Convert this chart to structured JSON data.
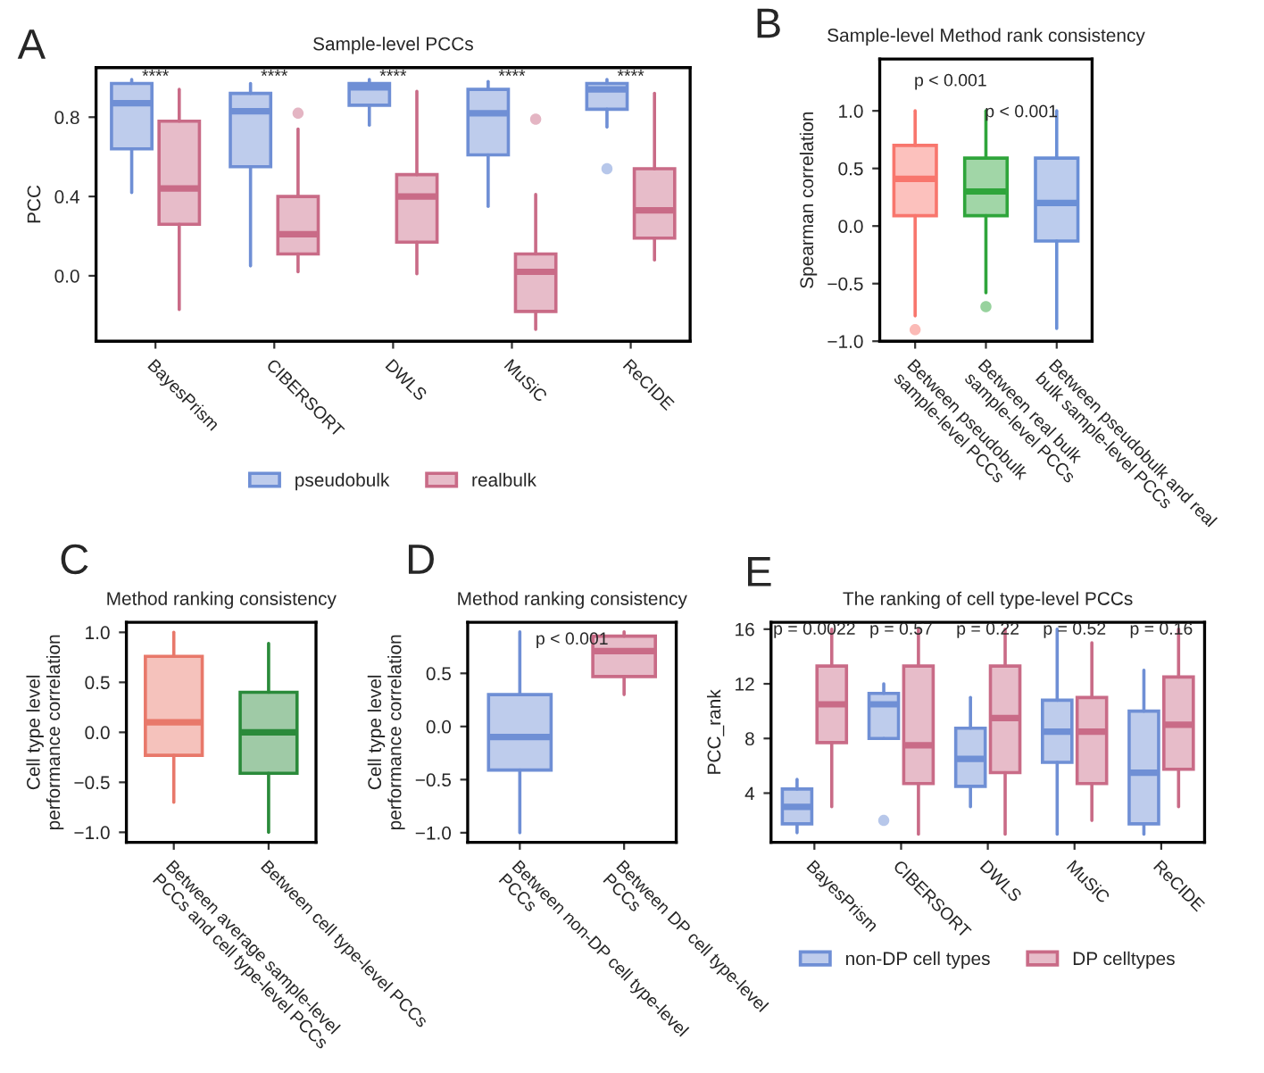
{
  "chart_data": [
    {
      "type": "box",
      "title": "Sample-level PCCs",
      "ylabel": "PCC",
      "categories": [
        "BayesPrism",
        "CIBERSORT",
        "DWLS",
        "MuSiC",
        "ReCIDE"
      ],
      "ylim": [
        -0.33,
        1.05
      ],
      "yticks": [
        {
          "value": 0,
          "label": "0.0"
        },
        {
          "value": 0.4,
          "label": "0.4"
        },
        {
          "value": 0.8,
          "label": "0.8"
        }
      ],
      "legend": "bottom",
      "series": [
        {
          "name": "pseudobulk",
          "color": "#6f8fd5",
          "boxes": [
            {
              "low": 0.42,
              "q1": 0.64,
              "median": 0.87,
              "q3": 0.97,
              "high": 0.99
            },
            {
              "low": 0.05,
              "q1": 0.55,
              "median": 0.83,
              "q3": 0.92,
              "high": 0.97
            },
            {
              "low": 0.76,
              "q1": 0.86,
              "median": 0.95,
              "q3": 0.97,
              "high": 0.99
            },
            {
              "low": 0.35,
              "q1": 0.61,
              "median": 0.82,
              "q3": 0.94,
              "high": 0.98
            },
            {
              "low": 0.75,
              "q1": 0.84,
              "median": 0.94,
              "q3": 0.97,
              "high": 0.99,
              "outliers": [
                0.54
              ]
            }
          ]
        },
        {
          "name": "realbulk",
          "color": "#c96b87",
          "boxes": [
            {
              "low": -0.17,
              "q1": 0.26,
              "median": 0.44,
              "q3": 0.78,
              "high": 0.94
            },
            {
              "low": 0.02,
              "q1": 0.11,
              "median": 0.21,
              "q3": 0.4,
              "high": 0.74,
              "outliers": [
                0.82
              ]
            },
            {
              "low": 0.01,
              "q1": 0.17,
              "median": 0.4,
              "q3": 0.51,
              "high": 0.93
            },
            {
              "low": -0.27,
              "q1": -0.18,
              "median": 0.02,
              "q3": 0.11,
              "high": 0.41,
              "outliers": [
                0.79
              ]
            },
            {
              "low": 0.08,
              "q1": 0.19,
              "median": 0.33,
              "q3": 0.54,
              "high": 0.92
            }
          ]
        }
      ],
      "annotations": [
        "A",
        "****",
        "****",
        "****",
        "****",
        "****"
      ]
    },
    {
      "type": "box",
      "title": "Sample-level Method rank consistency",
      "ylabel": "Spearman correlation",
      "categories": [
        "Between pseudobulk\nsample-level PCCs",
        "Between real bulk\nsample-level PCCs",
        "Between pseudobulk and real\nbulk sample-level PCCs"
      ],
      "ylim": [
        -1.0,
        1.45
      ],
      "yticks": [
        {
          "value": -1,
          "label": "−1.0"
        },
        {
          "value": -0.5,
          "label": "−0.5"
        },
        {
          "value": 0,
          "label": "0.0"
        },
        {
          "value": 0.5,
          "label": "0.5"
        },
        {
          "value": 1,
          "label": "1.0"
        }
      ],
      "colors": [
        "#f8766d",
        "#2fa53b",
        "#6a8fd6"
      ],
      "boxes": [
        {
          "low": -0.78,
          "q1": 0.09,
          "median": 0.41,
          "q3": 0.7,
          "high": 1.0,
          "outliers": [
            -0.9
          ]
        },
        {
          "low": -0.58,
          "q1": 0.09,
          "median": 0.3,
          "q3": 0.59,
          "high": 1.0,
          "outliers": [
            -0.7
          ]
        },
        {
          "low": -0.89,
          "q1": -0.13,
          "median": 0.2,
          "q3": 0.59,
          "high": 1.0
        }
      ],
      "annotations": [
        "B",
        "p < 0.001",
        "p < 0.001"
      ]
    },
    {
      "type": "box",
      "title": "Method ranking consistency",
      "ylabel": "Cell type level\nperformance correlation",
      "categories": [
        "Between average sample-level\nPCCs and cell type-level PCCs",
        "Between cell type-level PCCs"
      ],
      "ylim": [
        -1.1,
        1.1
      ],
      "yticks": [
        {
          "value": -1,
          "label": "−1.0"
        },
        {
          "value": -0.5,
          "label": "−0.5"
        },
        {
          "value": 0,
          "label": "0.0"
        },
        {
          "value": 0.5,
          "label": "0.5"
        },
        {
          "value": 1,
          "label": "1.0"
        }
      ],
      "colors": [
        "#e8786a",
        "#2a8a3a"
      ],
      "boxes": [
        {
          "low": -0.7,
          "q1": -0.23,
          "median": 0.1,
          "q3": 0.76,
          "high": 1.0
        },
        {
          "low": -1.0,
          "q1": -0.41,
          "median": 0.0,
          "q3": 0.4,
          "high": 0.89
        }
      ],
      "annotations": [
        "C"
      ]
    },
    {
      "type": "box",
      "title": "Method ranking consistency",
      "ylabel": "Cell type level\nperformance correlation",
      "categories": [
        "Between non-DP cell type-level\nPCCs",
        "Between DP cell type-level\nPCCs"
      ],
      "ylim": [
        -1.09,
        0.98
      ],
      "yticks": [
        {
          "value": -1,
          "label": "−1.0"
        },
        {
          "value": -0.5,
          "label": "−0.5"
        },
        {
          "value": 0,
          "label": "0.0"
        },
        {
          "value": 0.5,
          "label": "0.5"
        }
      ],
      "colors": [
        "#6f8fd5",
        "#c96b87"
      ],
      "boxes": [
        {
          "low": -1.0,
          "q1": -0.41,
          "median": -0.1,
          "q3": 0.3,
          "high": 0.89
        },
        {
          "low": 0.3,
          "q1": 0.47,
          "median": 0.71,
          "q3": 0.85,
          "high": 0.89
        }
      ],
      "annotations": [
        "D",
        "p < 0.001"
      ]
    },
    {
      "type": "box",
      "title": "The ranking of cell type-level PCCs",
      "ylabel": "PCC_rank",
      "categories": [
        "BayesPrism",
        "CIBERSORT",
        "DWLS",
        "MuSiC",
        "ReCIDE"
      ],
      "ylim": [
        0.4,
        16.5
      ],
      "yticks": [
        4,
        8,
        12,
        16
      ],
      "legend": "bottom",
      "series": [
        {
          "name": "non-DP cell types",
          "color": "#6f8fd5",
          "boxes": [
            {
              "low": 1.1,
              "q1": 1.75,
              "median": 3.0,
              "q3": 4.3,
              "high": 5.0
            },
            {
              "low": 8.0,
              "q1": 8.0,
              "median": 10.5,
              "q3": 11.3,
              "high": 12.0,
              "outliers": [
                2.0
              ]
            },
            {
              "low": 3.0,
              "q1": 4.5,
              "median": 6.5,
              "q3": 8.75,
              "high": 11.0
            },
            {
              "low": 1.0,
              "q1": 6.25,
              "median": 8.5,
              "q3": 10.8,
              "high": 16.0
            },
            {
              "low": 1.0,
              "q1": 1.75,
              "median": 5.5,
              "q3": 10.0,
              "high": 13.0
            }
          ]
        },
        {
          "name": "DP celltypes",
          "color": "#c96b87",
          "boxes": [
            {
              "low": 3.0,
              "q1": 7.7,
              "median": 10.5,
              "q3": 13.3,
              "high": 16.0
            },
            {
              "low": 1.0,
              "q1": 4.7,
              "median": 7.5,
              "q3": 13.3,
              "high": 16.0
            },
            {
              "low": 1.0,
              "q1": 5.5,
              "median": 9.5,
              "q3": 13.3,
              "high": 16.0
            },
            {
              "low": 2.0,
              "q1": 4.7,
              "median": 8.5,
              "q3": 11.0,
              "high": 15.0
            },
            {
              "low": 3.0,
              "q1": 5.75,
              "median": 9.0,
              "q3": 12.5,
              "high": 16.0
            }
          ]
        }
      ],
      "annotations": [
        "E",
        "p = 0.0022",
        "p = 0.57",
        "p = 0.22",
        "p = 0.52",
        "p = 0.16"
      ]
    }
  ]
}
